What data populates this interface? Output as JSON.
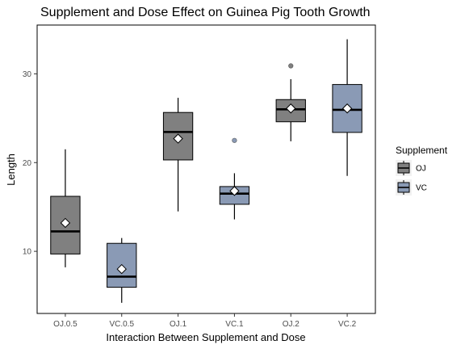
{
  "chart_data": {
    "type": "boxplot",
    "title": "Supplement and Dose Effect on Guinea Pig Tooth Growth",
    "xlabel": "Interaction Between Supplement and Dose",
    "ylabel": "Length",
    "ylim": [
      3,
      35.5
    ],
    "yticks": [
      10,
      20,
      30
    ],
    "grid": false,
    "legend": {
      "title": "Supplement",
      "position": "right",
      "entries": [
        {
          "label": "OJ",
          "color": "#808080"
        },
        {
          "label": "VC",
          "color": "#8a9ab5"
        }
      ]
    },
    "categories": [
      "OJ.0.5",
      "VC.0.5",
      "OJ.1",
      "VC.1",
      "OJ.2",
      "VC.2"
    ],
    "boxes": [
      {
        "category": "OJ.0.5",
        "supplement": "OJ",
        "min": 8.2,
        "q1": 9.7,
        "median": 12.25,
        "q3": 16.2,
        "max": 21.5,
        "mean": 13.2,
        "outliers": []
      },
      {
        "category": "VC.0.5",
        "supplement": "VC",
        "min": 4.2,
        "q1": 5.95,
        "median": 7.15,
        "q3": 10.9,
        "max": 11.5,
        "mean": 8.0,
        "outliers": []
      },
      {
        "category": "OJ.1",
        "supplement": "OJ",
        "min": 14.5,
        "q1": 20.3,
        "median": 23.45,
        "q3": 25.65,
        "max": 27.3,
        "mean": 22.7,
        "outliers": []
      },
      {
        "category": "VC.1",
        "supplement": "VC",
        "min": 13.6,
        "q1": 15.3,
        "median": 16.5,
        "q3": 17.3,
        "max": 18.8,
        "mean": 16.8,
        "outliers": [
          22.5
        ]
      },
      {
        "category": "OJ.2",
        "supplement": "OJ",
        "min": 22.4,
        "q1": 24.6,
        "median": 26.0,
        "q3": 27.1,
        "max": 29.4,
        "mean": 26.1,
        "outliers": [
          30.9
        ]
      },
      {
        "category": "VC.2",
        "supplement": "VC",
        "min": 18.5,
        "q1": 23.4,
        "median": 25.95,
        "q3": 28.8,
        "max": 33.9,
        "mean": 26.1,
        "outliers": []
      }
    ]
  }
}
